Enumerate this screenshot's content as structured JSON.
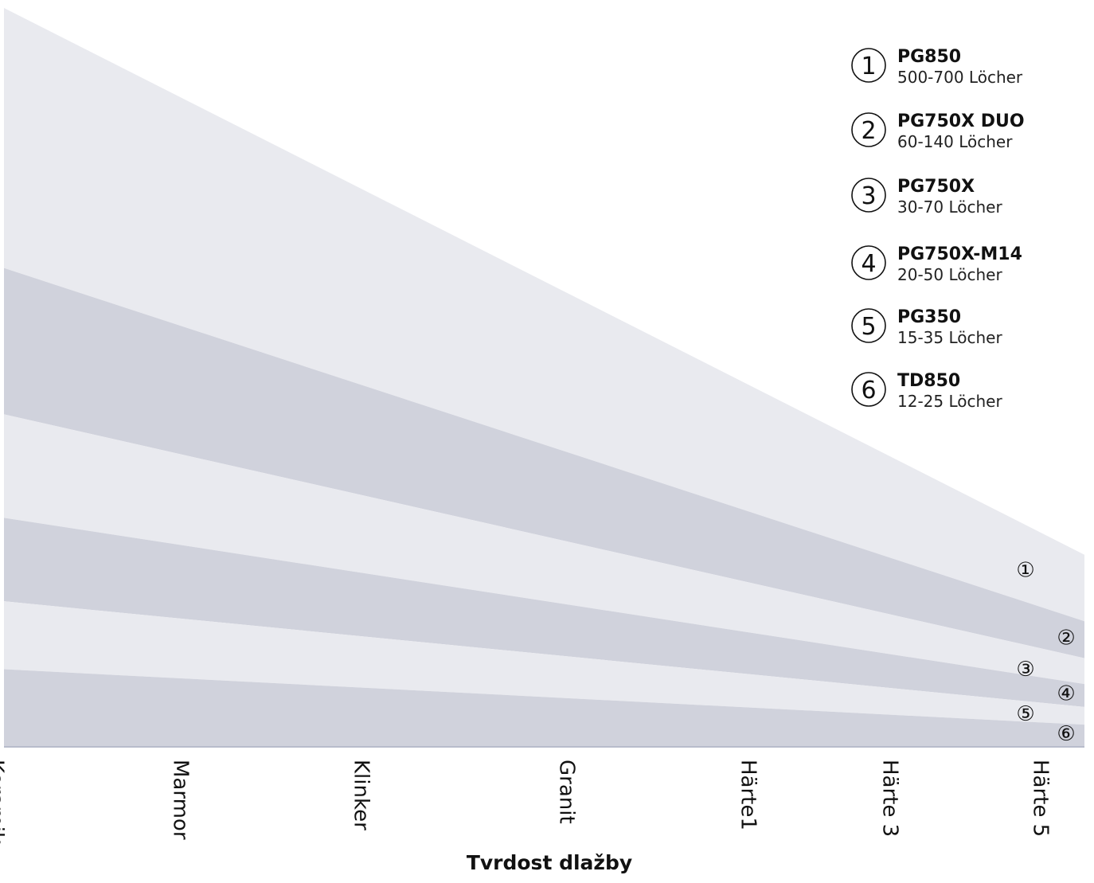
{
  "chart_data": {
    "type": "area",
    "xlabel": "Tvrdost dlažby",
    "categories": [
      "Keramik",
      "Marmor",
      "Klinker",
      "Granit",
      "Härte1",
      "Härte 3",
      "Härte 5"
    ],
    "ylim": [
      0,
      1
    ],
    "grid": false,
    "legend_position": "top-right",
    "colors": {
      "light_band": "#e9eaef",
      "dark_band": "#d0d2dc",
      "axis": "#b8bccb",
      "text": "#111111"
    },
    "series": [
      {
        "number": "①",
        "name": "PG850",
        "detail": "500-700 Löcher",
        "upper": [
          1.0,
          0.26
        ]
      },
      {
        "number": "②",
        "name": "PG750X DUO",
        "detail": "60-140 Löcher",
        "upper": [
          0.648,
          0.17
        ]
      },
      {
        "number": "③",
        "name": "PG750X",
        "detail": "30-70 Löcher",
        "upper": [
          0.45,
          0.12
        ]
      },
      {
        "number": "④",
        "name": "PG750X-M14",
        "detail": "20-50 Löcher",
        "upper": [
          0.31,
          0.085
        ]
      },
      {
        "number": "⑤",
        "name": "PG350",
        "detail": "15-35 Löcher",
        "upper": [
          0.197,
          0.054
        ]
      },
      {
        "number": "⑥",
        "name": "TD850",
        "detail": "12-25 Löcher",
        "upper": [
          0.105,
          0.03
        ]
      }
    ]
  }
}
